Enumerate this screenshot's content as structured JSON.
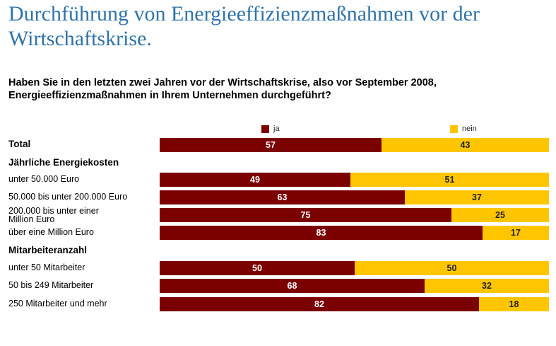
{
  "title": "Durchführung von Energieeffizienzmaßnahmen vor der Wirtschaftskrise.",
  "question_line1": "Haben Sie in den letzten zwei Jahren vor der Wirtschaftskrise, also vor September 2008,",
  "question_line2": "Energieeffizienzmaßnahmen in Ihrem Unternehmen durchgeführt?",
  "colors": {
    "ja": "#7b0000",
    "nein": "#ffc600"
  },
  "chart_data": {
    "type": "bar",
    "orientation": "horizontal",
    "stacked": true,
    "legend_position": "top",
    "xlim": [
      0,
      100
    ],
    "series": [
      {
        "name": "ja",
        "color": "#7b0000"
      },
      {
        "name": "nein",
        "color": "#ffc600"
      }
    ],
    "rows": [
      {
        "label": "Total",
        "bold": true,
        "values": [
          57,
          43
        ]
      },
      {
        "label": "Jährliche Energiekosten",
        "bold": true,
        "heading": true
      },
      {
        "label": "unter 50.000 Euro",
        "values": [
          49,
          51
        ]
      },
      {
        "label": "50.000 bis unter 200.000 Euro",
        "values": [
          63,
          37
        ]
      },
      {
        "label": "200.000 bis unter einer Million Euro",
        "values": [
          75,
          25
        ]
      },
      {
        "label": "über eine Million Euro",
        "values": [
          83,
          17
        ]
      },
      {
        "label": "Mitarbeiteranzahl",
        "bold": true,
        "heading": true
      },
      {
        "label": "unter 50 Mitarbeiter",
        "values": [
          50,
          50
        ]
      },
      {
        "label": "50 bis 249 Mitarbeiter",
        "values": [
          68,
          32
        ]
      },
      {
        "label": "250 Mitarbeiter und mehr",
        "values": [
          82,
          18
        ]
      }
    ]
  }
}
